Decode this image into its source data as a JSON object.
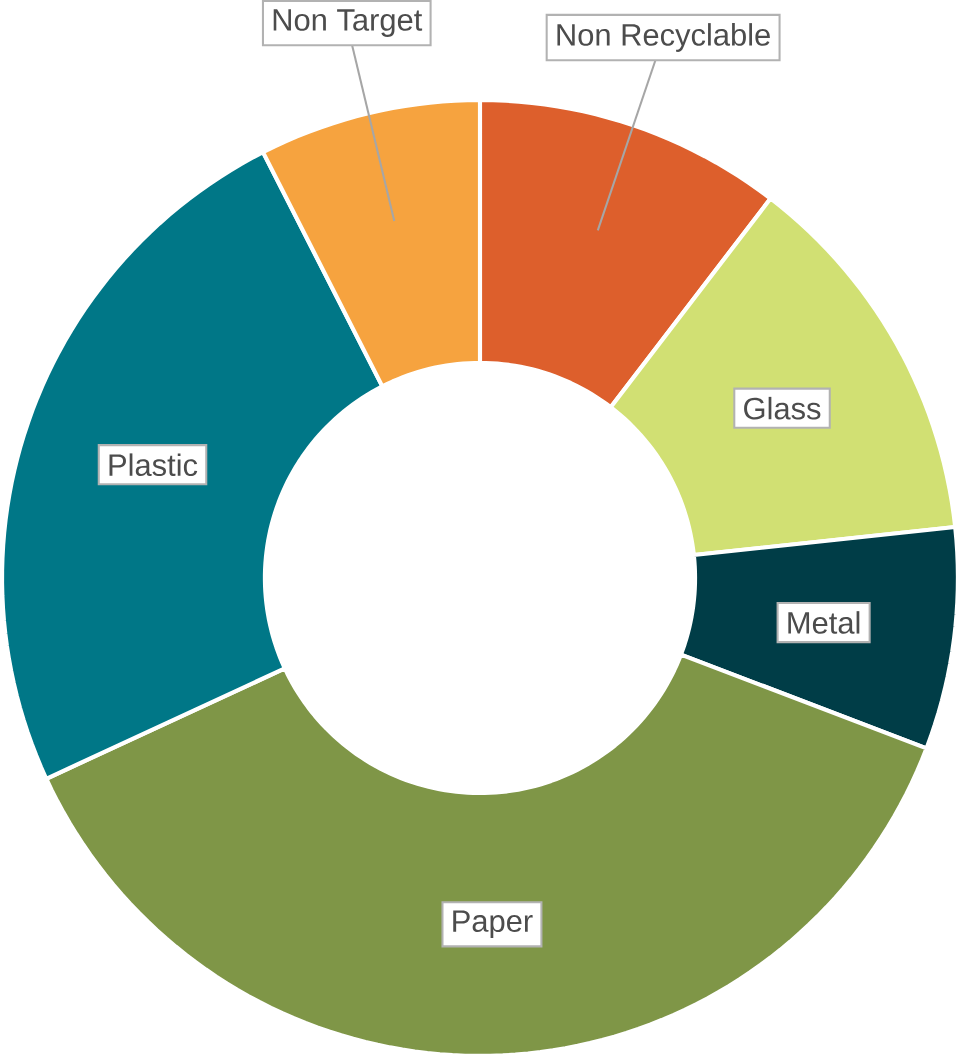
{
  "chart_data": {
    "type": "donut",
    "categories": [
      "Non Recyclable",
      "Glass",
      "Metal",
      "Paper",
      "Plastic",
      "Non Target"
    ],
    "values": [
      10.4,
      12.9,
      7.5,
      37.3,
      24.4,
      7.5
    ],
    "colors": [
      "#dd5f2c",
      "#d1e073",
      "#003d47",
      "#7f9647",
      "#007787",
      "#f6a33f"
    ]
  }
}
